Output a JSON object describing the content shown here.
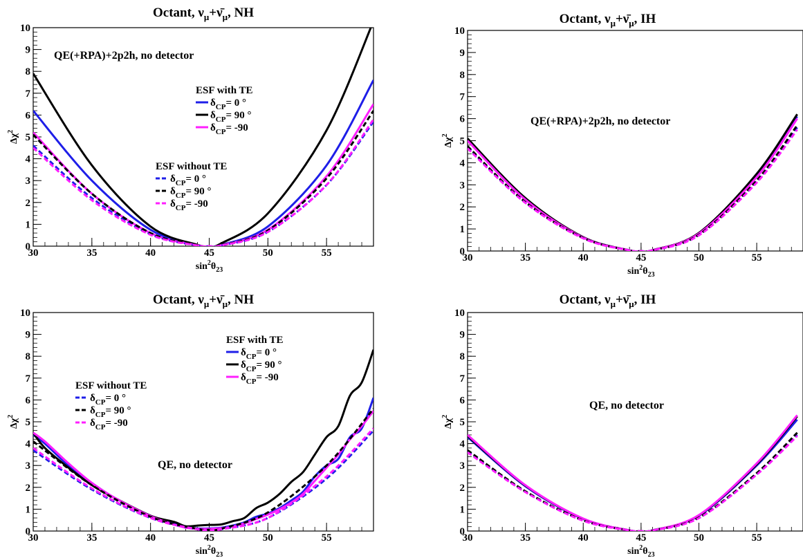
{
  "chart_data": [
    {
      "type": "line",
      "title": "Octant, ν_μ+ν̄_μ, NH",
      "xlabel": "sin²θ₂₃",
      "ylabel": "Δχ²",
      "xlim": [
        30,
        59
      ],
      "ylim": [
        0,
        10
      ],
      "xticks": [
        30,
        35,
        40,
        45,
        50,
        55
      ],
      "yticks": [
        0,
        1,
        2,
        3,
        4,
        5,
        6,
        7,
        8,
        9,
        10
      ],
      "annotation": "QE(+RPA)+2p2h, no detector",
      "legends": [
        {
          "title": "ESF with TE",
          "entries": [
            "δ_CP= 0 °",
            "δ_CP= 90 °",
            "δ_CP= -90"
          ]
        },
        {
          "title": "ESF without TE",
          "entries": [
            "δ_CP= 0 °",
            "δ_CP= 90 °",
            "δ_CP= -90"
          ]
        }
      ],
      "series": [
        {
          "name": "δ_CP= 0 °",
          "group": "with",
          "color": "#1e1ee8",
          "style": "solid",
          "x": [
            30,
            35,
            40,
            44,
            45,
            46,
            50,
            55,
            59
          ],
          "y": [
            6.2,
            3.0,
            0.75,
            0.05,
            0,
            0.05,
            0.9,
            3.7,
            7.6
          ]
        },
        {
          "name": "δ_CP= 90 °",
          "group": "with",
          "color": "#000000",
          "style": "solid",
          "x": [
            30,
            35,
            40,
            44,
            45,
            46,
            50,
            55,
            59
          ],
          "y": [
            7.9,
            3.7,
            0.9,
            0.06,
            0,
            0.12,
            1.5,
            5.3,
            10.3
          ]
        },
        {
          "name": "δ_CP= -90",
          "group": "with",
          "color": "#ff1eff",
          "style": "solid",
          "x": [
            30,
            35,
            40,
            44,
            45,
            46,
            50,
            55,
            59
          ],
          "y": [
            5.2,
            2.4,
            0.6,
            0.04,
            0,
            0.04,
            0.75,
            3.2,
            6.5
          ]
        },
        {
          "name": "δ_CP= 0 °",
          "group": "without",
          "color": "#1e1ee8",
          "style": "dashed",
          "x": [
            30,
            35,
            40,
            44,
            45,
            46,
            50,
            55,
            59
          ],
          "y": [
            4.6,
            2.2,
            0.55,
            0.03,
            0,
            0.03,
            0.65,
            2.8,
            5.7
          ]
        },
        {
          "name": "δ_CP= 90 °",
          "group": "without",
          "color": "#000000",
          "style": "dashed",
          "x": [
            30,
            35,
            40,
            44,
            45,
            46,
            50,
            55,
            59
          ],
          "y": [
            5.1,
            2.4,
            0.6,
            0.04,
            0,
            0.04,
            0.72,
            3.1,
            6.2
          ]
        },
        {
          "name": "δ_CP= -90",
          "group": "without",
          "color": "#ff1eff",
          "style": "dashed",
          "x": [
            30,
            35,
            40,
            44,
            45,
            46,
            50,
            55,
            59
          ],
          "y": [
            4.5,
            2.1,
            0.52,
            0.03,
            0,
            0.03,
            0.65,
            2.8,
            5.8
          ]
        }
      ]
    },
    {
      "type": "line",
      "title": "Octant, ν_μ+ν̄_μ, IH",
      "xlabel": "sin²θ₂₃",
      "ylabel": "Δχ²",
      "xlim": [
        30,
        59
      ],
      "ylim": [
        0,
        10
      ],
      "xticks": [
        30,
        35,
        40,
        45,
        50,
        55
      ],
      "yticks": [
        0,
        1,
        2,
        3,
        4,
        5,
        6,
        7,
        8,
        9,
        10
      ],
      "annotation": "QE(+RPA)+2p2h, no detector",
      "series": [
        {
          "name": "δ_CP= 0 °",
          "group": "with",
          "color": "#1e1ee8",
          "style": "solid",
          "x": [
            30,
            35,
            40,
            44,
            45,
            46,
            50,
            55,
            58.5
          ],
          "y": [
            5.05,
            2.35,
            0.62,
            0.03,
            0,
            0.04,
            0.8,
            3.4,
            6.1
          ]
        },
        {
          "name": "δ_CP= 90 °",
          "group": "with",
          "color": "#000000",
          "style": "solid",
          "x": [
            30,
            35,
            40,
            44,
            45,
            46,
            50,
            55,
            58.5
          ],
          "y": [
            5.1,
            2.4,
            0.63,
            0.03,
            0,
            0.04,
            0.82,
            3.5,
            6.2
          ]
        },
        {
          "name": "δ_CP= -90",
          "group": "with",
          "color": "#ff1eff",
          "style": "solid",
          "x": [
            30,
            35,
            40,
            44,
            45,
            46,
            50,
            55,
            58.5
          ],
          "y": [
            5.0,
            2.33,
            0.61,
            0.03,
            0,
            0.04,
            0.79,
            3.35,
            6.0
          ]
        },
        {
          "name": "δ_CP= 0 °",
          "group": "without",
          "color": "#1e1ee8",
          "style": "dashed",
          "x": [
            30,
            35,
            40,
            44,
            45,
            46,
            50,
            55,
            58.5
          ],
          "y": [
            4.7,
            2.2,
            0.58,
            0.03,
            0,
            0.03,
            0.72,
            3.15,
            5.6
          ]
        },
        {
          "name": "δ_CP= 90 °",
          "group": "without",
          "color": "#000000",
          "style": "dashed",
          "x": [
            30,
            35,
            40,
            44,
            45,
            46,
            50,
            55,
            58.5
          ],
          "y": [
            4.75,
            2.22,
            0.59,
            0.03,
            0,
            0.03,
            0.74,
            3.2,
            5.7
          ]
        },
        {
          "name": "δ_CP= -90",
          "group": "without",
          "color": "#ff1eff",
          "style": "dashed",
          "x": [
            30,
            35,
            40,
            44,
            45,
            46,
            50,
            55,
            58.5
          ],
          "y": [
            4.65,
            2.18,
            0.57,
            0.03,
            0,
            0.03,
            0.71,
            3.1,
            5.5
          ]
        }
      ]
    },
    {
      "type": "line",
      "title": "Octant, ν_μ+ν̄_μ, NH",
      "xlabel": "sin²θ₂₃",
      "ylabel": "Δχ²",
      "xlim": [
        30,
        59
      ],
      "ylim": [
        0,
        10
      ],
      "xticks": [
        30,
        35,
        40,
        45,
        50,
        55
      ],
      "yticks": [
        0,
        1,
        2,
        3,
        4,
        5,
        6,
        7,
        8,
        9,
        10
      ],
      "annotation": "QE, no detector",
      "legends": [
        {
          "title": "ESF with TE",
          "entries": [
            "δ_CP= 0 °",
            "δ_CP= 90 °",
            "δ_CP= -90"
          ]
        },
        {
          "title": "ESF without TE",
          "entries": [
            "δ_CP= 0 °",
            "δ_CP= 90 °",
            "δ_CP= -90"
          ]
        }
      ],
      "series": [
        {
          "name": "δ_CP= 0 °",
          "group": "with",
          "color": "#1e1ee8",
          "style": "solid",
          "x": [
            30,
            31,
            33,
            35,
            37,
            40,
            42,
            43,
            44,
            45,
            46,
            47,
            48,
            49,
            50,
            51,
            52,
            53,
            54,
            55,
            56,
            57,
            58,
            59
          ],
          "y": [
            4.4,
            4.0,
            3.0,
            2.2,
            1.5,
            0.7,
            0.35,
            0.18,
            0.12,
            0.12,
            0.15,
            0.25,
            0.4,
            0.65,
            0.8,
            1.05,
            1.4,
            1.8,
            2.5,
            3.0,
            3.3,
            4.3,
            4.7,
            6.1
          ]
        },
        {
          "name": "δ_CP= 90 °",
          "group": "with",
          "color": "#000000",
          "style": "solid",
          "x": [
            30,
            31,
            33,
            35,
            37,
            40,
            42,
            43,
            44,
            45,
            46,
            47,
            48,
            49,
            50,
            51,
            52,
            53,
            54,
            55,
            56,
            57,
            58,
            59
          ],
          "y": [
            4.5,
            3.8,
            2.9,
            2.1,
            1.5,
            0.7,
            0.42,
            0.22,
            0.25,
            0.28,
            0.3,
            0.45,
            0.6,
            1.05,
            1.3,
            1.7,
            2.25,
            2.7,
            3.5,
            4.3,
            4.8,
            6.2,
            6.8,
            8.3
          ]
        },
        {
          "name": "δ_CP= -90",
          "group": "with",
          "color": "#ff1eff",
          "style": "solid",
          "x": [
            30,
            31,
            33,
            35,
            37,
            40,
            42,
            43,
            44,
            45,
            46,
            47,
            48,
            49,
            50,
            51,
            52,
            53,
            54,
            55,
            56,
            57,
            58,
            59
          ],
          "y": [
            4.5,
            4.1,
            3.1,
            2.2,
            1.5,
            0.68,
            0.3,
            0.15,
            0.1,
            0.1,
            0.13,
            0.2,
            0.35,
            0.55,
            0.75,
            1.0,
            1.3,
            1.7,
            2.3,
            2.9,
            3.5,
            4.2,
            4.8,
            5.5
          ]
        },
        {
          "name": "δ_CP= 0 °",
          "group": "without",
          "color": "#1e1ee8",
          "style": "dashed",
          "x": [
            30,
            35,
            40,
            44,
            45,
            46,
            50,
            55,
            59
          ],
          "y": [
            3.7,
            1.9,
            0.6,
            0.08,
            0.05,
            0.08,
            0.6,
            2.4,
            4.6
          ]
        },
        {
          "name": "δ_CP= 90 °",
          "group": "without",
          "color": "#000000",
          "style": "dashed",
          "x": [
            30,
            35,
            40,
            44,
            45,
            46,
            50,
            55,
            59
          ],
          "y": [
            4.1,
            2.1,
            0.65,
            0.1,
            0.06,
            0.1,
            0.85,
            3.0,
            5.6
          ]
        },
        {
          "name": "δ_CP= -90",
          "group": "without",
          "color": "#ff1eff",
          "style": "dashed",
          "x": [
            30,
            35,
            40,
            44,
            45,
            46,
            50,
            55,
            59
          ],
          "y": [
            3.8,
            1.95,
            0.6,
            0.08,
            0.05,
            0.08,
            0.6,
            2.5,
            4.7
          ]
        }
      ]
    },
    {
      "type": "line",
      "title": "Octant, ν_μ+ν̄_μ, IH",
      "xlabel": "sin²θ₂₃",
      "ylabel": "Δχ²",
      "xlim": [
        30,
        59
      ],
      "ylim": [
        0,
        10
      ],
      "xticks": [
        30,
        35,
        40,
        45,
        50,
        55
      ],
      "yticks": [
        0,
        1,
        2,
        3,
        4,
        5,
        6,
        7,
        8,
        9,
        10
      ],
      "annotation": "QE, no detector",
      "series": [
        {
          "name": "δ_CP= 0 °",
          "group": "with",
          "color": "#1e1ee8",
          "style": "solid",
          "x": [
            30,
            35,
            40,
            44,
            45,
            46,
            50,
            55,
            58.5
          ],
          "y": [
            4.3,
            2.05,
            0.55,
            0.03,
            0,
            0.03,
            0.7,
            3.0,
            5.1
          ]
        },
        {
          "name": "δ_CP= 90 °",
          "group": "with",
          "color": "#000000",
          "style": "solid",
          "x": [
            30,
            35,
            40,
            44,
            45,
            46,
            50,
            55,
            58.5
          ],
          "y": [
            4.35,
            2.08,
            0.56,
            0.03,
            0,
            0.03,
            0.72,
            3.05,
            5.25
          ]
        },
        {
          "name": "δ_CP= -90",
          "group": "with",
          "color": "#ff1eff",
          "style": "solid",
          "x": [
            30,
            35,
            40,
            44,
            45,
            46,
            50,
            55,
            58.5
          ],
          "y": [
            4.4,
            2.1,
            0.57,
            0.03,
            0,
            0.03,
            0.73,
            3.1,
            5.3
          ]
        },
        {
          "name": "δ_CP= 0 °",
          "group": "without",
          "color": "#1e1ee8",
          "style": "dashed",
          "x": [
            30,
            35,
            40,
            44,
            45,
            46,
            50,
            55,
            58.5
          ],
          "y": [
            3.65,
            1.8,
            0.48,
            0.03,
            0,
            0.03,
            0.6,
            2.6,
            4.4
          ]
        },
        {
          "name": "δ_CP= 90 °",
          "group": "without",
          "color": "#000000",
          "style": "dashed",
          "x": [
            30,
            35,
            40,
            44,
            45,
            46,
            50,
            55,
            58.5
          ],
          "y": [
            3.7,
            1.82,
            0.49,
            0.03,
            0,
            0.03,
            0.62,
            2.65,
            4.5
          ]
        },
        {
          "name": "δ_CP= -90",
          "group": "without",
          "color": "#ff1eff",
          "style": "dashed",
          "x": [
            30,
            35,
            40,
            44,
            45,
            46,
            50,
            55,
            58.5
          ],
          "y": [
            3.6,
            1.78,
            0.47,
            0.03,
            0,
            0.03,
            0.59,
            2.58,
            4.35
          ]
        }
      ]
    }
  ]
}
